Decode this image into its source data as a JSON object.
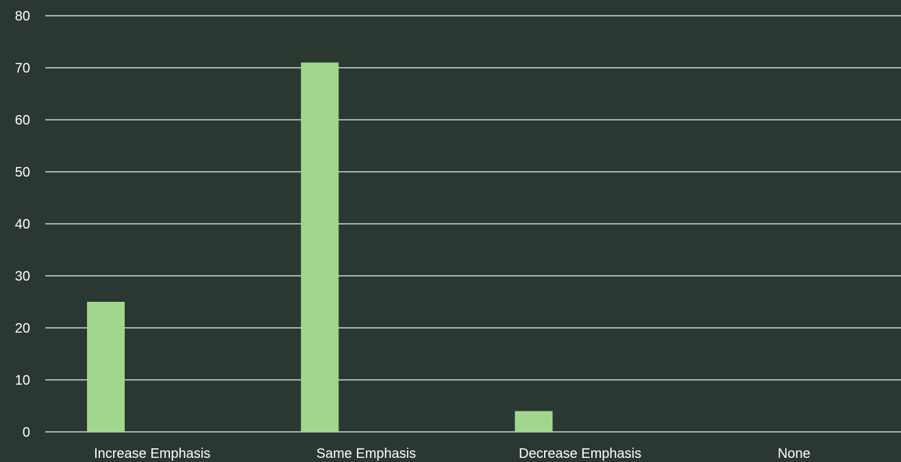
{
  "colors": {
    "background": "#2b3832",
    "bar": "#a2d68d",
    "grid": "#ffffff",
    "text": "#ffffff"
  },
  "chart_data": {
    "type": "bar",
    "title": "",
    "xlabel": "",
    "ylabel": "",
    "categories": [
      "Increase Emphasis",
      "Same Emphasis",
      "Decrease Emphasis",
      "None"
    ],
    "values": [
      25,
      71,
      4,
      0
    ],
    "ylim": [
      0,
      80
    ],
    "yticks": [
      0,
      10,
      20,
      30,
      40,
      50,
      60,
      70,
      80
    ],
    "grid": true,
    "legend": "none"
  }
}
